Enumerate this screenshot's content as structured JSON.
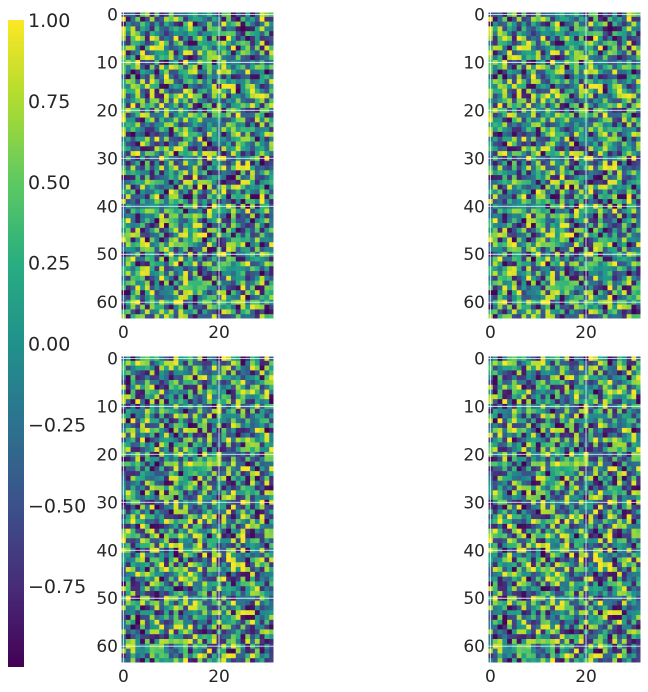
{
  "chart_data": {
    "type": "heatmap",
    "colormap": "viridis",
    "grid": true,
    "panels": [
      {
        "rows": 64,
        "cols": 32,
        "seed": 11,
        "xticks": [
          "0",
          "20"
        ],
        "yticks": [
          "0",
          "10",
          "20",
          "30",
          "40",
          "50",
          "60"
        ],
        "xlim": [
          -0.5,
          31.5
        ],
        "ylim": [
          63.5,
          -0.5
        ]
      },
      {
        "rows": 64,
        "cols": 32,
        "seed": 11,
        "xticks": [
          "0",
          "20"
        ],
        "yticks": [
          "0",
          "10",
          "20",
          "30",
          "40",
          "50",
          "60"
        ],
        "xlim": [
          -0.5,
          31.5
        ],
        "ylim": [
          63.5,
          -0.5
        ]
      },
      {
        "rows": 64,
        "cols": 32,
        "seed": 47,
        "xticks": [
          "0",
          "20"
        ],
        "yticks": [
          "0",
          "10",
          "20",
          "30",
          "40",
          "50",
          "60"
        ],
        "xlim": [
          -0.5,
          31.5
        ],
        "ylim": [
          63.5,
          -0.5
        ]
      },
      {
        "rows": 64,
        "cols": 32,
        "seed": 47,
        "xticks": [
          "0",
          "20"
        ],
        "yticks": [
          "0",
          "10",
          "20",
          "30",
          "40",
          "50",
          "60"
        ],
        "xlim": [
          -0.5,
          31.5
        ],
        "ylim": [
          63.5,
          -0.5
        ]
      }
    ],
    "colorbar": {
      "range": [
        -1.0,
        1.0
      ],
      "ticks": [
        "1.00",
        "0.75",
        "0.50",
        "0.25",
        "0.00",
        "−0.25",
        "−0.50",
        "−0.75"
      ],
      "tick_values": [
        1.0,
        0.75,
        0.5,
        0.25,
        0.0,
        -0.25,
        -0.5,
        -0.75
      ]
    }
  }
}
